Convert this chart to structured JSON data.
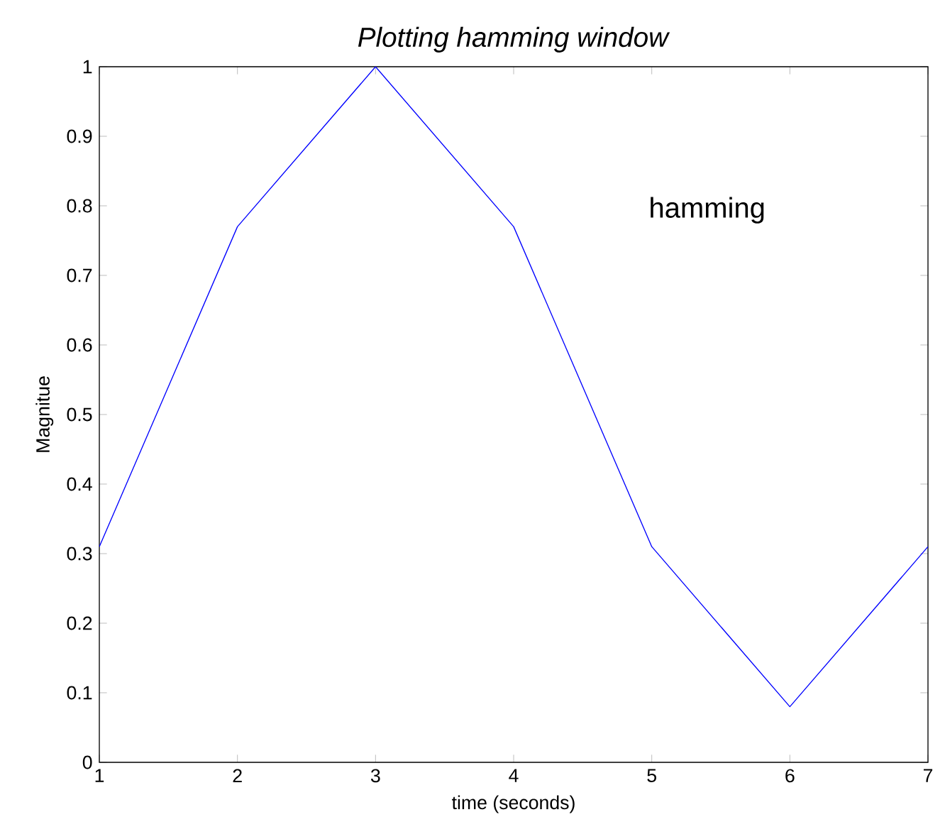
{
  "chart_data": {
    "type": "line",
    "title": "*Plotting hamming window*",
    "xlabel": "time (seconds)",
    "ylabel": "Magnitue",
    "annotations": [
      "hamming"
    ],
    "x": [
      1,
      2,
      3,
      4,
      5,
      6,
      7
    ],
    "series": [
      {
        "color": "#0000ff",
        "values": [
          0.31,
          0.77,
          1.0,
          0.77,
          0.31,
          0.08,
          0.31
        ]
      }
    ],
    "xlim": [
      1,
      7
    ],
    "ylim": [
      0,
      1
    ],
    "xticks": [
      1,
      2,
      3,
      4,
      5,
      6,
      7
    ],
    "yticks": [
      0,
      0.1,
      0.2,
      0.3,
      0.4,
      0.5,
      0.6,
      0.7,
      0.8,
      0.9,
      1
    ],
    "grid": false
  }
}
